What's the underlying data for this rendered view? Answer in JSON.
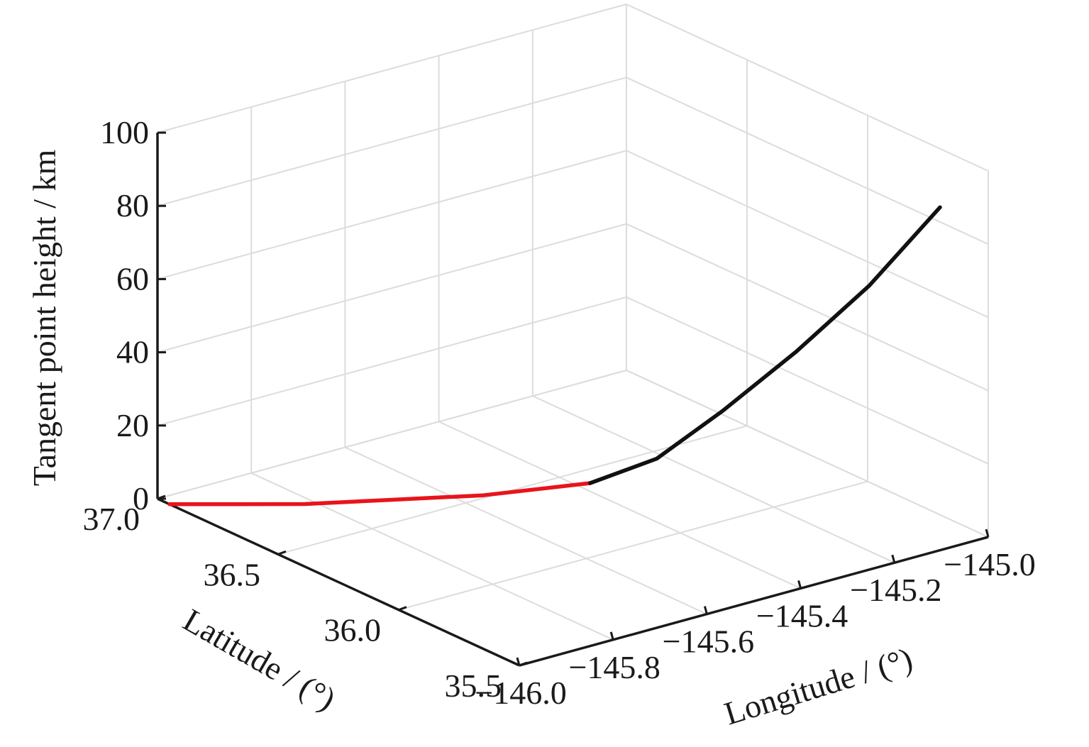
{
  "chart_data": {
    "type": "line",
    "projection": "3d",
    "xlabel": "Longitude / (°)",
    "ylabel": "Latitude / (°)",
    "zlabel": "Tangent point height / km",
    "xlim": [
      -146.0,
      -145.0
    ],
    "ylim": [
      35.5,
      37.0
    ],
    "zlim": [
      0,
      100
    ],
    "xticks": [
      -146.0,
      -145.8,
      -145.6,
      -145.4,
      -145.2,
      -145.0
    ],
    "xtick_labels": [
      "−146.0",
      "−145.8",
      "−145.6",
      "−145.4",
      "−145.2",
      "−145.0"
    ],
    "yticks": [
      37.0,
      36.5,
      36.0,
      35.5
    ],
    "ytick_labels": [
      "37.0",
      "36.5",
      "36.0",
      "35.5"
    ],
    "zticks": [
      0,
      20,
      40,
      60,
      80,
      100
    ],
    "ztick_labels": [
      "0",
      "20",
      "40",
      "60",
      "80",
      "100"
    ],
    "grid": true,
    "series": [
      {
        "color": "#e8141c",
        "x": [
          -146.0,
          -145.93,
          -145.85,
          -145.75,
          -145.65,
          -145.53
        ],
        "y": [
          36.95,
          36.82,
          36.68,
          36.52,
          36.33,
          36.12
        ],
        "z": [
          0.0,
          1.5,
          3.0,
          5.5,
          9.0,
          14.5
        ]
      },
      {
        "color": "#111111",
        "x": [
          -145.53,
          -145.45,
          -145.36,
          -145.25,
          -145.13,
          -145.0
        ],
        "y": [
          36.12,
          36.0,
          35.9,
          35.81,
          35.74,
          35.7
        ],
        "z": [
          14.5,
          22.0,
          35.0,
          50.0,
          66.0,
          84.0
        ]
      }
    ]
  }
}
